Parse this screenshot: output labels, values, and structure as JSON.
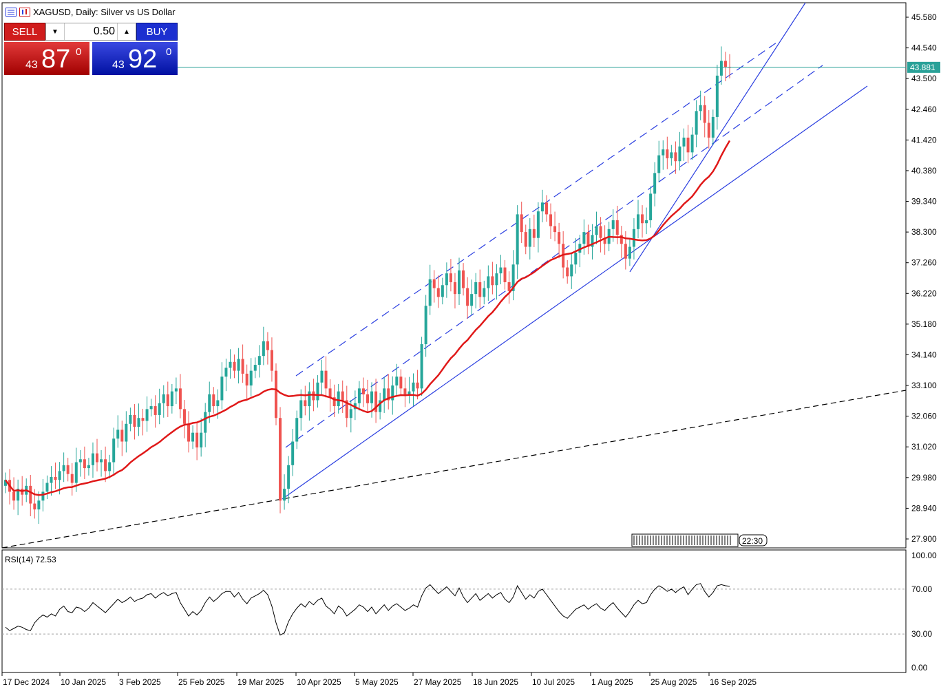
{
  "window": {
    "title": "XAGUSD, Daily:  Silver vs US Dollar"
  },
  "trade_panel": {
    "sell_label": "SELL",
    "buy_label": "BUY",
    "lot_value": "0.50",
    "sell_quote": {
      "prefix": "43",
      "big": "87",
      "sup": "0"
    },
    "buy_quote": {
      "prefix": "43",
      "big": "92",
      "sup": "0"
    }
  },
  "colors": {
    "candle_up": "#26a69a",
    "candle_down": "#ef5350",
    "ma_line": "#e01818",
    "trendline": "#2a3ee0",
    "price_line": "#2aa198",
    "dashed_support": "#000000"
  },
  "chart_data": {
    "type": "candlestick",
    "symbol": "XAGUSD",
    "timeframe": "Daily",
    "current_price": "43.881",
    "y_axis_labels": [
      "45.580",
      "44.540",
      "43.500",
      "42.460",
      "41.420",
      "40.380",
      "39.340",
      "38.300",
      "37.260",
      "36.220",
      "35.180",
      "34.140",
      "33.100",
      "32.060",
      "31.020",
      "29.980",
      "28.940",
      "27.900"
    ],
    "x_axis_labels": [
      "17 Dec 2024",
      "10 Jan 2025",
      "3 Feb 2025",
      "25 Feb 2025",
      "19 Mar 2025",
      "10 Apr 2025",
      "5 May 2025",
      "27 May 2025",
      "18 Jun 2025",
      "10 Jul 2025",
      "1 Aug 2025",
      "25 Aug 2025",
      "16 Sep 2025"
    ],
    "time_label": "22:30",
    "price_range": [
      27.3,
      45.9
    ],
    "close_series": [
      29.9,
      29.5,
      29.2,
      29.6,
      29.4,
      29.7,
      29.1,
      28.9,
      29.2,
      29.5,
      29.8,
      30.0,
      29.9,
      30.2,
      30.4,
      30.1,
      29.8,
      30.5,
      30.6,
      30.3,
      30.4,
      30.8,
      30.5,
      30.6,
      30.2,
      30.5,
      31.3,
      31.6,
      31.2,
      31.8,
      32.1,
      31.7,
      32.0,
      31.9,
      32.3,
      32.4,
      32.1,
      32.5,
      32.8,
      32.4,
      32.9,
      33.0,
      32.3,
      31.8,
      31.2,
      31.5,
      31.0,
      31.5,
      32.2,
      32.8,
      32.4,
      32.6,
      33.4,
      33.7,
      33.9,
      33.6,
      34.0,
      33.5,
      33.1,
      33.6,
      33.8,
      34.1,
      34.6,
      34.3,
      33.6,
      32.0,
      29.2,
      29.6,
      30.4,
      31.2,
      32.0,
      32.6,
      32.4,
      32.9,
      32.6,
      33.2,
      33.6,
      33.0,
      32.7,
      32.4,
      32.9,
      32.6,
      32.0,
      32.3,
      32.5,
      33.0,
      32.8,
      32.5,
      32.9,
      32.2,
      32.6,
      33.0,
      32.6,
      33.1,
      33.4,
      33.0,
      32.8,
      32.9,
      33.2,
      33.0,
      34.5,
      35.8,
      36.7,
      36.4,
      36.1,
      36.5,
      36.9,
      36.6,
      36.2,
      37.0,
      36.4,
      35.8,
      36.2,
      36.6,
      36.1,
      36.4,
      36.8,
      36.5,
      36.9,
      37.1,
      36.6,
      36.3,
      37.2,
      38.9,
      38.3,
      37.8,
      38.4,
      38.1,
      39.0,
      39.3,
      38.9,
      38.5,
      38.3,
      37.9,
      37.1,
      36.8,
      37.2,
      37.6,
      37.9,
      38.3,
      37.8,
      38.2,
      38.5,
      38.1,
      37.9,
      38.4,
      38.7,
      38.2,
      37.9,
      37.4,
      37.8,
      38.4,
      38.9,
      38.6,
      38.7,
      39.6,
      40.3,
      40.9,
      41.1,
      40.8,
      41.0,
      40.7,
      41.2,
      41.5,
      41.0,
      41.6,
      42.4,
      42.6,
      42.0,
      41.5,
      42.2,
      43.6,
      44.1,
      43.9,
      43.88
    ],
    "ma_path_desc": "50-period moving average",
    "indicator": {
      "name": "RSI(14)",
      "value": "72.53",
      "label": "RSI(14) 72.53",
      "levels": [
        "100.00",
        "70.00",
        "30.00",
        "0.00"
      ],
      "range": [
        0,
        100
      ],
      "series": [
        36,
        33,
        35,
        37,
        36,
        34,
        33,
        40,
        44,
        47,
        45,
        48,
        46,
        52,
        55,
        50,
        49,
        54,
        53,
        50,
        53,
        58,
        55,
        52,
        49,
        53,
        57,
        61,
        58,
        60,
        63,
        59,
        61,
        62,
        65,
        66,
        62,
        65,
        67,
        64,
        66,
        67,
        58,
        52,
        46,
        50,
        47,
        51,
        58,
        63,
        59,
        62,
        66,
        68,
        68,
        63,
        67,
        61,
        57,
        62,
        64,
        66,
        69,
        65,
        55,
        40,
        29,
        31,
        41,
        48,
        53,
        57,
        54,
        59,
        56,
        60,
        62,
        55,
        52,
        48,
        55,
        52,
        46,
        49,
        52,
        56,
        54,
        50,
        54,
        48,
        52,
        56,
        51,
        55,
        57,
        54,
        51,
        53,
        56,
        54,
        64,
        71,
        74,
        70,
        66,
        69,
        72,
        68,
        64,
        71,
        63,
        58,
        62,
        66,
        60,
        63,
        66,
        62,
        65,
        67,
        61,
        58,
        63,
        73,
        67,
        61,
        65,
        62,
        68,
        70,
        65,
        60,
        55,
        50,
        46,
        44,
        48,
        52,
        54,
        56,
        52,
        55,
        57,
        53,
        51,
        55,
        58,
        53,
        49,
        45,
        50,
        56,
        60,
        57,
        58,
        65,
        70,
        73,
        71,
        68,
        70,
        67,
        70,
        72,
        65,
        70,
        74,
        75,
        68,
        63,
        67,
        73,
        74,
        73,
        72.53
      ]
    }
  }
}
